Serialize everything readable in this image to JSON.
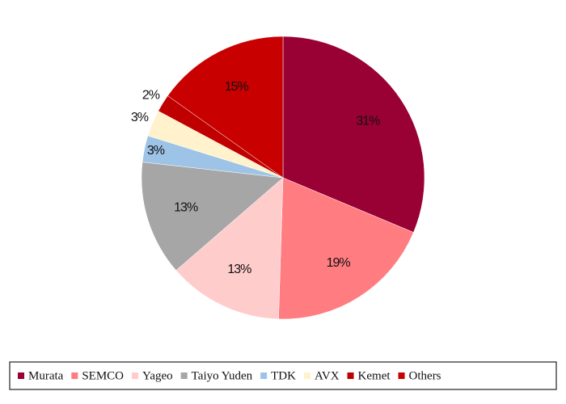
{
  "chart_data": {
    "type": "pie",
    "categories": [
      "Murata",
      "SEMCO",
      "Yageo",
      "Taiyo Yuden",
      "TDK",
      "AVX",
      "Kemet",
      "Others"
    ],
    "values": [
      31,
      19,
      13,
      13,
      3,
      3,
      2,
      15
    ],
    "value_labels": [
      "31%",
      "19%",
      "13%",
      "13%",
      "3%",
      "3%",
      "2%",
      "15%"
    ],
    "colors": [
      "#990033",
      "#ff7c80",
      "#ffcccc",
      "#a6a6a6",
      "#9dc3e6",
      "#fff2cc",
      "#c00000",
      "#c80000"
    ],
    "legend": "bottom"
  }
}
